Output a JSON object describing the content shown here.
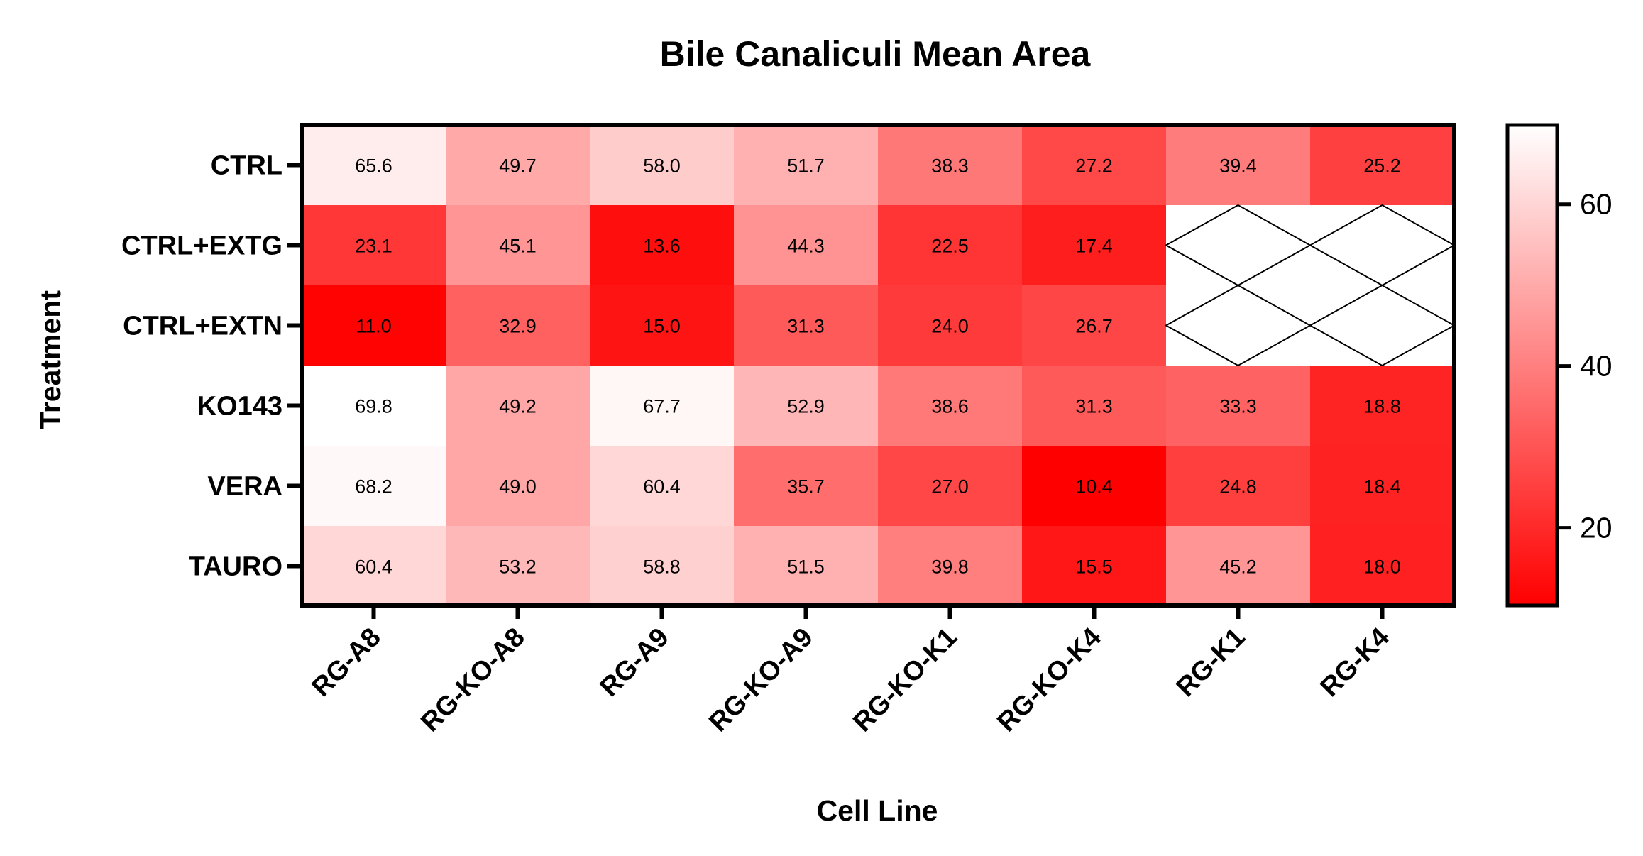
{
  "colors": {
    "low": "#ff0000",
    "high": "#ffffff",
    "missing_fill": "#ffffff",
    "axis": "#000000"
  },
  "chart_data": {
    "type": "heatmap",
    "title": "Bile Canaliculi Mean Area",
    "xlabel": "Cell Line",
    "ylabel": "Treatment",
    "x_categories": [
      "RG-A8",
      "RG-KO-A8",
      "RG-A9",
      "RG-KO-A9",
      "RG-KO-K1",
      "RG-KO-K4",
      "RG-K1",
      "RG-K4"
    ],
    "y_categories": [
      "CTRL",
      "CTRL+EXTG",
      "CTRL+EXTN",
      "KO143",
      "VERA",
      "TAURO"
    ],
    "values": [
      [
        65.6,
        49.7,
        58.0,
        51.7,
        38.3,
        27.2,
        39.4,
        25.2
      ],
      [
        23.1,
        45.1,
        13.6,
        44.3,
        22.5,
        17.4,
        null,
        null
      ],
      [
        11.0,
        32.9,
        15.0,
        31.3,
        24.0,
        26.7,
        null,
        null
      ],
      [
        69.8,
        49.2,
        67.7,
        52.9,
        38.6,
        31.3,
        33.3,
        18.8
      ],
      [
        68.2,
        49.0,
        60.4,
        35.7,
        27.0,
        10.4,
        24.8,
        18.4
      ],
      [
        60.4,
        53.2,
        58.8,
        51.5,
        39.8,
        15.5,
        45.2,
        18.0
      ]
    ],
    "value_labels": [
      [
        "65.6",
        "49.7",
        "58.0",
        "51.7",
        "38.3",
        "27.2",
        "39.4",
        "25.2"
      ],
      [
        "23.1",
        "45.1",
        "13.6",
        "44.3",
        "22.5",
        "17.4",
        "",
        ""
      ],
      [
        "11.0",
        "32.9",
        "15.0",
        "31.3",
        "24.0",
        "26.7",
        "",
        ""
      ],
      [
        "69.8",
        "49.2",
        "67.7",
        "52.9",
        "38.6",
        "31.3",
        "33.3",
        "18.8"
      ],
      [
        "68.2",
        "49.0",
        "60.4",
        "35.7",
        "27.0",
        "10.4",
        "24.8",
        "18.4"
      ],
      [
        "60.4",
        "53.2",
        "58.8",
        "51.5",
        "39.8",
        "15.5",
        "45.2",
        "18.0"
      ]
    ],
    "colorbar": {
      "range": [
        10.4,
        69.8
      ],
      "ticks": [
        20,
        40,
        60
      ],
      "tick_labels": [
        "20",
        "40",
        "60"
      ]
    },
    "missing_cells": "crossed-out (X pattern)",
    "grid": false,
    "legend": "colorbar-right"
  }
}
